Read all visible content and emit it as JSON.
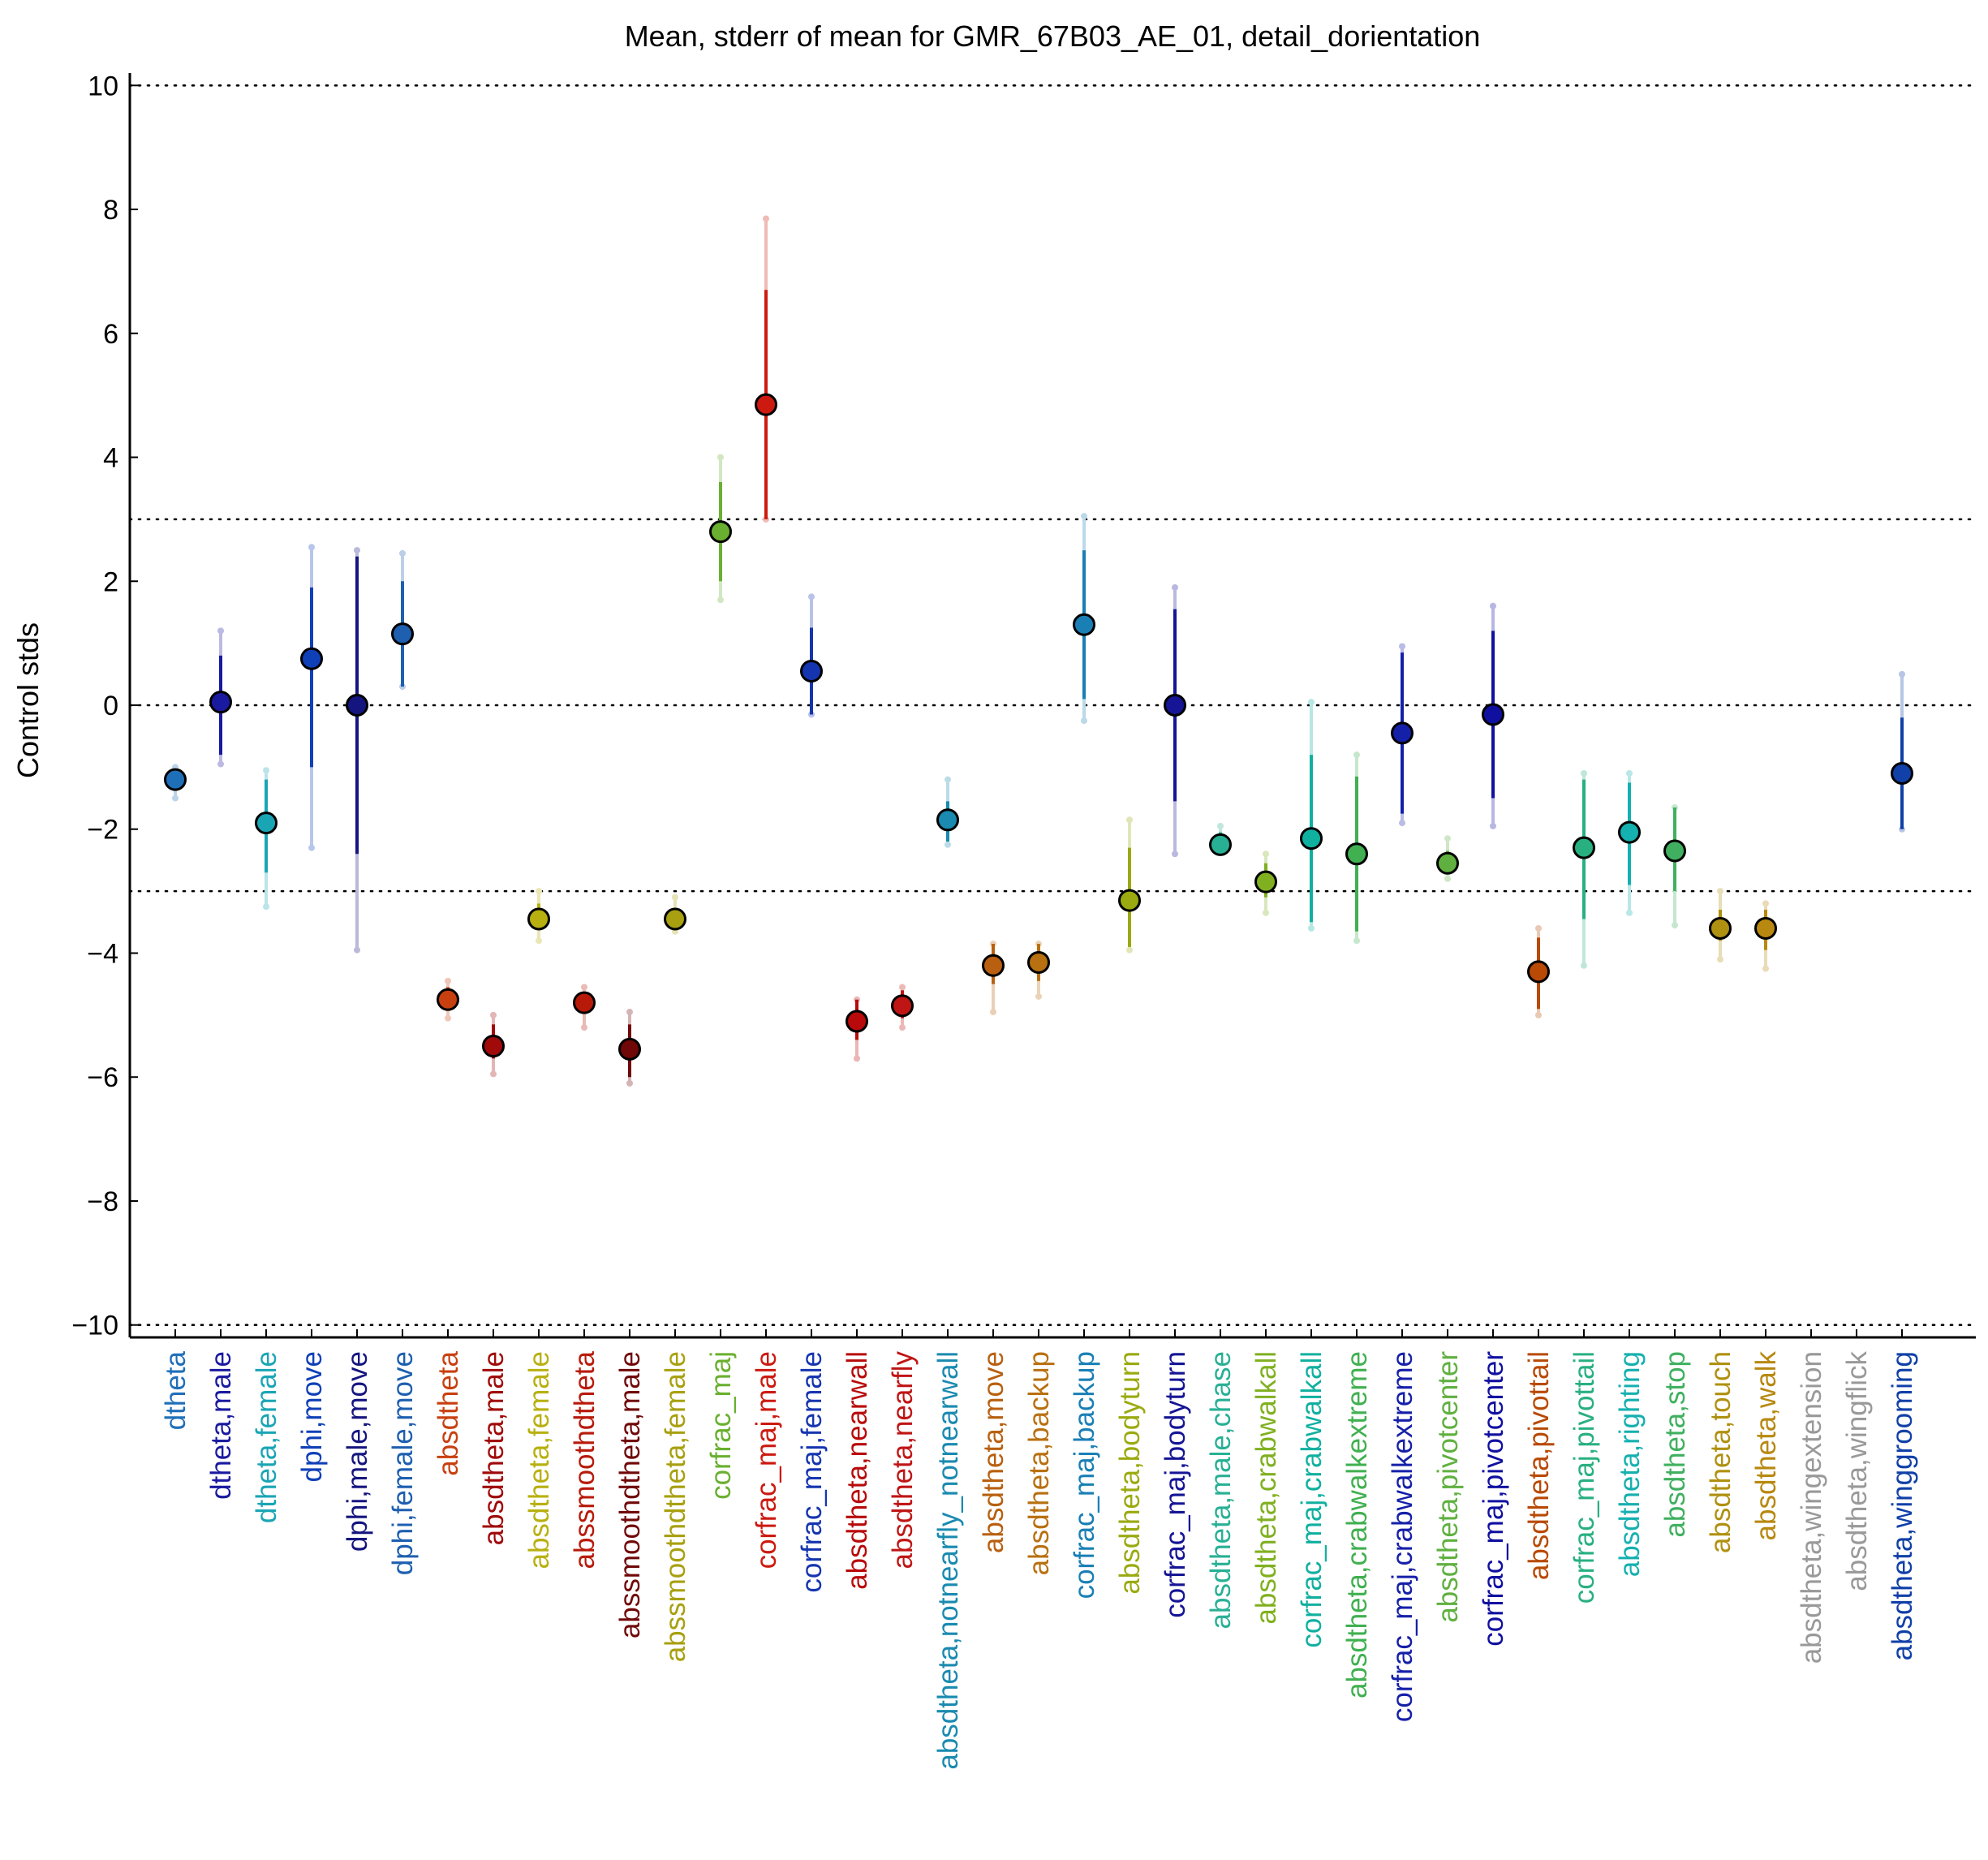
{
  "chart_data": {
    "type": "scatter",
    "title": "Mean, stderr of mean for GMR_67B03_AE_01, detail_dorientation",
    "xlabel": "",
    "ylabel": "Control stds",
    "ylim": [
      -10.2,
      10.2
    ],
    "yticks": [
      10,
      8,
      6,
      4,
      2,
      0,
      -2,
      -4,
      -6,
      -8,
      -10
    ],
    "ytick_labels": [
      "10",
      "8",
      "6",
      "4",
      "2",
      "0",
      "−2",
      "−4",
      "−6",
      "−8",
      "−10"
    ],
    "reference_lines": [
      10,
      3,
      0,
      -3,
      -10
    ],
    "grid": false,
    "legend": "none",
    "categories": [
      "dtheta",
      "dtheta,male",
      "dtheta,female",
      "dphi,move",
      "dphi,male,move",
      "dphi,female,move",
      "absdtheta",
      "absdtheta,male",
      "absdtheta,female",
      "abssmoothdtheta",
      "abssmoothdtheta,male",
      "abssmoothdtheta,female",
      "corfrac_maj",
      "corfrac_maj,male",
      "corfrac_maj,female",
      "absdtheta,nearwall",
      "absdtheta,nearfly",
      "absdtheta,notnearfly_notnearwall",
      "absdtheta,move",
      "absdtheta,backup",
      "corfrac_maj,backup",
      "absdtheta,bodyturn",
      "corfrac_maj,bodyturn",
      "absdtheta,male,chase",
      "absdtheta,crabwalkall",
      "corfrac_maj,crabwalkall",
      "absdtheta,crabwalkextreme",
      "corfrac_maj,crabwalkextreme",
      "absdtheta,pivotcenter",
      "corfrac_maj,pivotcenter",
      "absdtheta,pivottail",
      "corfrac_maj,pivottail",
      "absdtheta,righting",
      "absdtheta,stop",
      "absdtheta,touch",
      "absdtheta,walk",
      "absdtheta,wingextension",
      "absdtheta,wingflick",
      "absdtheta,winggrooming"
    ],
    "colors": [
      "#1f6fb8",
      "#1a1aa0",
      "#1aa5b5",
      "#1040b8",
      "#151580",
      "#1e5fb0",
      "#c84010",
      "#a00a0a",
      "#b8b010",
      "#b81a0a",
      "#700808",
      "#a8a010",
      "#6ab030",
      "#cc1a10",
      "#1535b0",
      "#b80a0a",
      "#c01515",
      "#1a8ab0",
      "#b86010",
      "#b87010",
      "#1a7fb5",
      "#9aaa10",
      "#151595",
      "#28b095",
      "#80b020",
      "#10b0a0",
      "#40b050",
      "#1520a8",
      "#60b040",
      "#1010a0",
      "#b84a05",
      "#28b080",
      "#15b0b0",
      "#40b060",
      "#b09010",
      "#b88810",
      "#999999",
      "#999999",
      "#1040a8"
    ],
    "mean": [
      -1.2,
      0.05,
      -1.9,
      0.75,
      0.0,
      1.15,
      -4.75,
      -5.5,
      -3.45,
      -4.8,
      -5.55,
      -3.45,
      2.8,
      4.85,
      0.55,
      -5.1,
      -4.85,
      -1.85,
      -4.2,
      -4.15,
      1.3,
      -3.15,
      0.0,
      -2.25,
      -2.85,
      -2.15,
      -2.4,
      -0.45,
      -2.55,
      -0.15,
      -4.3,
      -2.3,
      -2.05,
      -2.35,
      -3.6,
      -3.6,
      null,
      null,
      -1.1
    ],
    "stderr_low": [
      -1.3,
      -0.8,
      -2.7,
      -1.0,
      -2.4,
      0.3,
      -4.9,
      -5.7,
      -3.6,
      -4.95,
      -6.0,
      -3.55,
      2.0,
      3.0,
      -0.15,
      -5.4,
      -5.05,
      -2.2,
      -4.5,
      -4.45,
      0.1,
      -3.9,
      -1.55,
      -2.3,
      -3.1,
      -3.5,
      -3.65,
      -1.75,
      -2.7,
      -1.5,
      -4.9,
      -3.45,
      -2.9,
      -3.0,
      -3.8,
      -3.95,
      null,
      null,
      -2.0
    ],
    "stderr_high": [
      -1.1,
      0.8,
      -1.2,
      1.9,
      2.4,
      2.0,
      -4.55,
      -5.15,
      -3.2,
      -4.65,
      -5.15,
      -3.3,
      3.6,
      6.7,
      1.25,
      -4.75,
      -4.6,
      -1.55,
      -3.85,
      -3.85,
      2.5,
      -2.3,
      1.55,
      -2.05,
      -2.55,
      -0.8,
      -1.15,
      0.85,
      -2.35,
      1.2,
      -3.75,
      -1.2,
      -1.25,
      -1.65,
      -3.3,
      -3.3,
      null,
      null,
      -0.2
    ],
    "range_low": [
      -1.5,
      -0.95,
      -3.25,
      -2.3,
      -3.95,
      0.3,
      -5.05,
      -5.95,
      -3.8,
      -5.2,
      -6.1,
      -3.65,
      1.7,
      3.0,
      -0.15,
      -5.7,
      -5.2,
      -2.25,
      -4.95,
      -4.7,
      -0.25,
      -3.95,
      -2.4,
      -2.35,
      -3.35,
      -3.6,
      -3.8,
      -1.9,
      -2.8,
      -1.95,
      -5.0,
      -4.2,
      -3.35,
      -3.55,
      -4.1,
      -4.25,
      null,
      null,
      -2.0
    ],
    "range_high": [
      -1.0,
      1.2,
      -1.05,
      2.55,
      2.5,
      2.45,
      -4.45,
      -5.0,
      -3.0,
      -4.55,
      -4.95,
      -3.1,
      4.0,
      7.85,
      1.75,
      -4.75,
      -4.55,
      -1.2,
      -3.85,
      -3.85,
      3.05,
      -1.85,
      1.9,
      -1.95,
      -2.4,
      0.05,
      -0.8,
      0.95,
      -2.15,
      1.6,
      -3.6,
      -1.1,
      -1.1,
      -1.65,
      -3.0,
      -3.2,
      null,
      null,
      0.5
    ]
  }
}
